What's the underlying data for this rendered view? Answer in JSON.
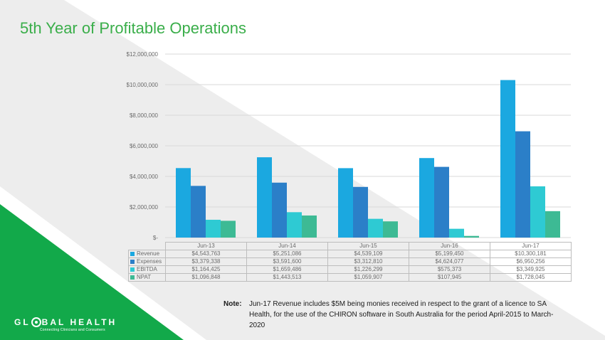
{
  "title": "5th Year of Profitable Operations",
  "colors": {
    "title": "#3aae4a",
    "brand_green": "#12a94a",
    "light_gray_band": "#ededed",
    "revenue": "#1ba8e0",
    "expenses": "#2b7fc8",
    "ebitda": "#2ecad3",
    "npat": "#3dba94"
  },
  "chart_data": {
    "type": "bar",
    "categories": [
      "Jun-13",
      "Jun-14",
      "Jun-15",
      "Jun-16",
      "Jun-17"
    ],
    "series": [
      {
        "name": "Revenue",
        "values": [
          4543763,
          5251086,
          4539109,
          5199450,
          10300181
        ],
        "labels": [
          "$4,543,763",
          "$5,251,086",
          "$4,539,109",
          "$5,199,450",
          "$10,300,181"
        ],
        "color": "#1ba8e0"
      },
      {
        "name": "Expenses",
        "values": [
          3379338,
          3591600,
          3312810,
          4624077,
          6950256
        ],
        "labels": [
          "$3,379,338",
          "$3,591,600",
          "$3,312,810",
          "$4,624,077",
          "$6,950,256"
        ],
        "color": "#2b7fc8"
      },
      {
        "name": "EBITDA",
        "values": [
          1164425,
          1659486,
          1226299,
          575373,
          3349925
        ],
        "labels": [
          "$1,164,425",
          "$1,659,486",
          "$1,226,299",
          "$575,373",
          "$3,349,925"
        ],
        "color": "#2ecad3"
      },
      {
        "name": "NPAT",
        "values": [
          1096848,
          1443513,
          1059907,
          107945,
          1728045
        ],
        "labels": [
          "$1,096,848",
          "$1,443,513",
          "$1,059,907",
          "$107,945",
          "$1,728,045"
        ],
        "color": "#3dba94"
      }
    ],
    "ylim": [
      0,
      12000000
    ],
    "yticks": [
      {
        "value": 0,
        "label": "$-"
      },
      {
        "value": 2000000,
        "label": "$2,000,000"
      },
      {
        "value": 4000000,
        "label": "$4,000,000"
      },
      {
        "value": 6000000,
        "label": "$6,000,000"
      },
      {
        "value": 8000000,
        "label": "$8,000,000"
      },
      {
        "value": 10000000,
        "label": "$10,000,000"
      },
      {
        "value": 12000000,
        "label": "$12,000,000"
      }
    ],
    "grid": true,
    "legend": "data-table"
  },
  "note": {
    "label": "Note:",
    "text": "Jun-17 Revenue includes $5M being monies received in respect to the grant of a licence to SA Health, for the use of the CHIRON software in South Australia for the period April-2015 to March-2020"
  },
  "logo": {
    "name_left": "GL",
    "name_right": "BAL HEALTH",
    "tagline": "Connecting Clinicians and Consumers"
  }
}
